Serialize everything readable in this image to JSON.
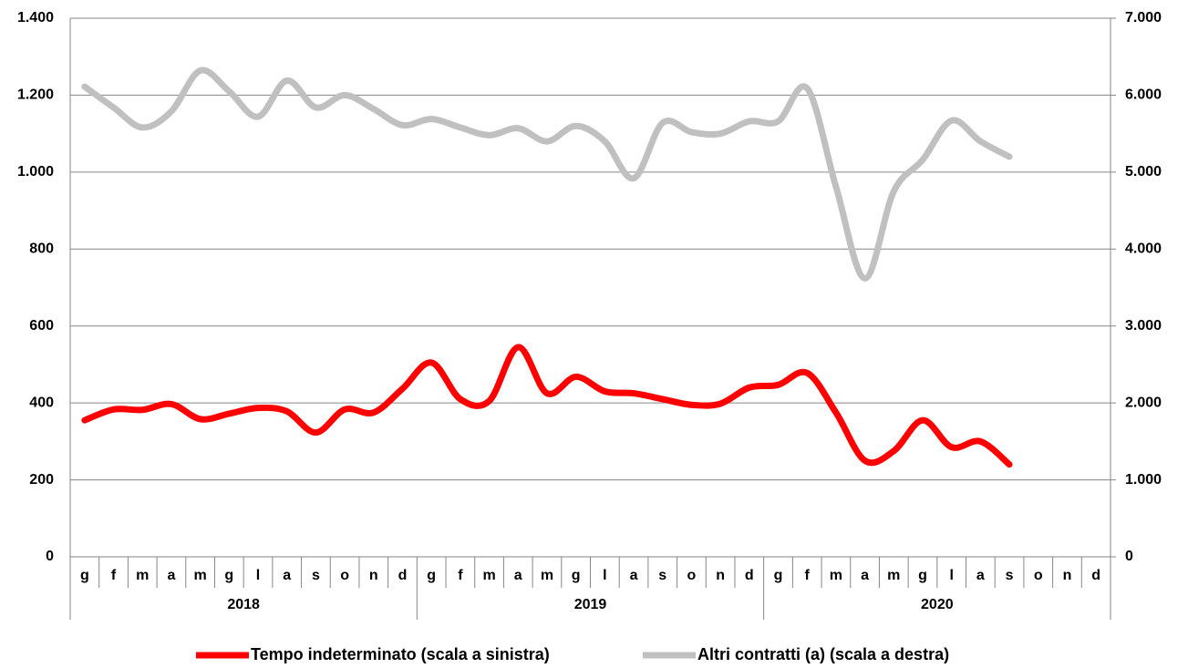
{
  "chart_data": {
    "type": "line",
    "categories": [
      "g",
      "f",
      "m",
      "a",
      "m",
      "g",
      "l",
      "a",
      "s",
      "o",
      "n",
      "d",
      "g",
      "f",
      "m",
      "a",
      "m",
      "g",
      "l",
      "a",
      "s",
      "o",
      "n",
      "d",
      "g",
      "f",
      "m",
      "a",
      "m",
      "g",
      "l",
      "a",
      "s",
      "o",
      "n",
      "d"
    ],
    "year_groups": [
      "2018",
      "2019",
      "2020"
    ],
    "series": [
      {
        "name": "Tempo indeterminato (scala a sinistra)",
        "color": "#ff0000",
        "axis": "y",
        "values": [
          355,
          383,
          382,
          397,
          358,
          372,
          387,
          378,
          323,
          383,
          375,
          437,
          505,
          410,
          405,
          545,
          425,
          468,
          430,
          425,
          410,
          395,
          398,
          440,
          447,
          478,
          375,
          250,
          275,
          355,
          285,
          300,
          240,
          null,
          null,
          null
        ]
      },
      {
        "name": "Altri contratti (a) (scala a destra)",
        "color": "#c0c0c0",
        "axis": "y2",
        "values": [
          6110,
          5840,
          5580,
          5790,
          6320,
          6050,
          5720,
          6190,
          5840,
          6000,
          5820,
          5610,
          5690,
          5580,
          5480,
          5570,
          5400,
          5600,
          5400,
          4920,
          5640,
          5520,
          5500,
          5660,
          5660,
          6090,
          4810,
          3620,
          4750,
          5160,
          5670,
          5400,
          5200,
          null,
          null,
          null
        ]
      }
    ],
    "ylim": [
      0,
      1400
    ],
    "yticks": [
      0,
      200,
      400,
      600,
      800,
      {
        "value": 1000,
        "label": "1.000"
      },
      {
        "value": 1200,
        "label": "1.200"
      },
      {
        "value": 1400,
        "label": "1.400"
      }
    ],
    "y2lim": [
      0,
      7000
    ],
    "y2ticks": [
      0,
      {
        "value": 1000,
        "label": "1.000"
      },
      {
        "value": 2000,
        "label": "2.000"
      },
      {
        "value": 3000,
        "label": "3.000"
      },
      {
        "value": 4000,
        "label": "4.000"
      },
      {
        "value": 5000,
        "label": "5.000"
      },
      {
        "value": 6000,
        "label": "6.000"
      },
      {
        "value": 7000,
        "label": "7.000"
      }
    ],
    "grid": true,
    "legend": "bottom"
  }
}
